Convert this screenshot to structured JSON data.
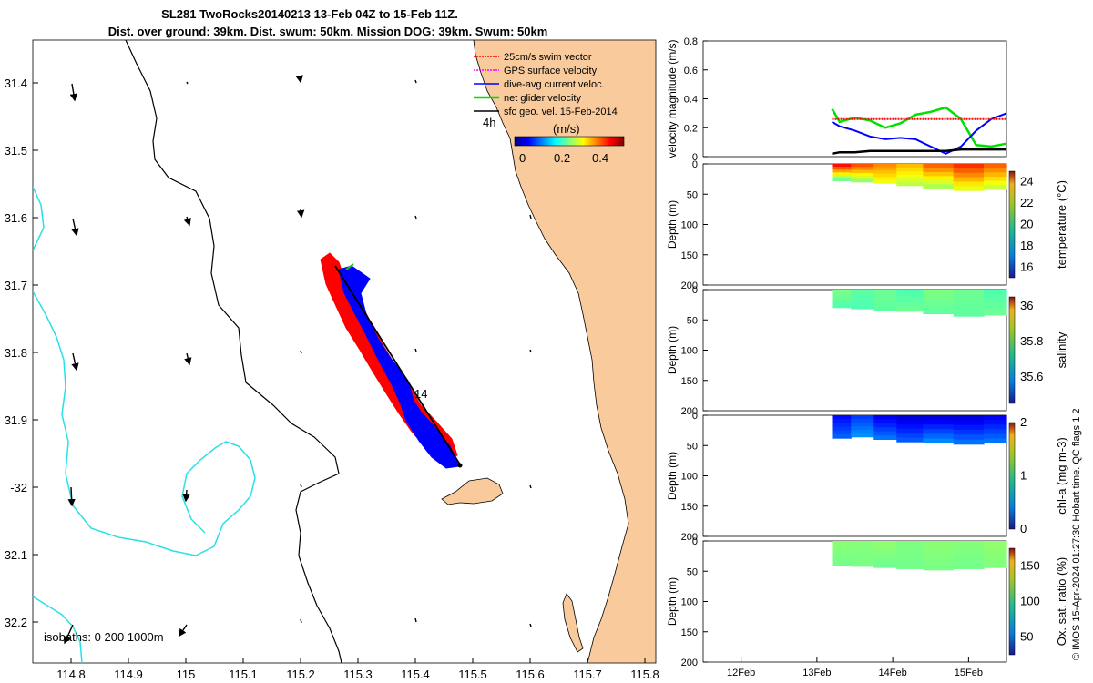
{
  "title": {
    "line1": "SL281 TwoRocks20140213 13-Feb 04Z to 15-Feb 11Z.",
    "line2": "Dist. over ground: 39km. Dist. swum: 50km. Mission DOG: 39km. Swum: 50km"
  },
  "map": {
    "lon_ticks": [
      "114.8",
      "114.9",
      "115",
      "115.1",
      "115.2",
      "115.3",
      "115.4",
      "115.5",
      "115.6",
      "115.7",
      "115.8"
    ],
    "lat_ticks": [
      "31.4",
      "31.5",
      "31.6",
      "31.7",
      "31.8",
      "31.9",
      "-32",
      "32.1",
      "32.2"
    ],
    "isobaths_label": "isobaths: 0   200  1000m",
    "track_day_label": "14",
    "legend": [
      {
        "label": "25cm/s swim vector",
        "color": "#ff0000"
      },
      {
        "label": "GPS surface velocity",
        "color": "#ff00ff"
      },
      {
        "label": "dive-avg current veloc.",
        "color": "#0000ff"
      },
      {
        "label": "net glider velocity",
        "color": "#00e000"
      },
      {
        "label": "sfc geo. vel. 15-Feb-2014",
        "color": "#000000"
      }
    ],
    "legend_scale_label": "4h",
    "colorbar": {
      "unit": "(m/s)",
      "ticks": [
        "0",
        "0.2",
        "0.4"
      ]
    }
  },
  "chart_data": [
    {
      "type": "line",
      "title": "",
      "ylabel": "velocity magnitude (m/s)",
      "xlabel": "",
      "ylim": [
        0,
        0.8
      ],
      "yticks": [
        "0",
        "0.2",
        "0.4",
        "0.6",
        "0.8"
      ],
      "x_ticks": [
        "12Feb",
        "13Feb",
        "14Feb",
        "15Feb"
      ],
      "x": [
        13.2,
        13.3,
        13.5,
        13.7,
        13.9,
        14.1,
        14.3,
        14.5,
        14.7,
        14.9,
        15.1,
        15.3,
        15.5
      ],
      "series": [
        {
          "name": "net glider velocity",
          "color": "#00e000",
          "values": [
            0.33,
            0.24,
            0.27,
            0.25,
            0.2,
            0.23,
            0.29,
            0.31,
            0.34,
            0.26,
            0.08,
            0.07,
            0.09
          ]
        },
        {
          "name": "dive-avg current veloc.",
          "color": "#0000ff",
          "values": [
            0.24,
            0.21,
            0.18,
            0.14,
            0.12,
            0.13,
            0.12,
            0.07,
            0.02,
            0.07,
            0.18,
            0.26,
            0.3
          ]
        },
        {
          "name": "25cm/s swim vector",
          "color": "#ff0000",
          "values": [
            0.26,
            0.26,
            0.26,
            0.26,
            0.26,
            0.26,
            0.26,
            0.26,
            0.26,
            0.26,
            0.26,
            0.26,
            0.26
          ]
        },
        {
          "name": "sfc geo. vel.",
          "color": "#000000",
          "values": [
            0.02,
            0.03,
            0.03,
            0.04,
            0.04,
            0.04,
            0.04,
            0.04,
            0.04,
            0.05,
            0.05,
            0.05,
            0.05
          ]
        }
      ]
    },
    {
      "type": "heatmap",
      "ylabel": "Depth (m)",
      "yticks": [
        "0",
        "50",
        "100",
        "150",
        "200"
      ],
      "ylim": [
        0,
        200
      ],
      "colorbar_label": "temperature (°C)",
      "colorbar_ticks": [
        "16",
        "18",
        "20",
        "22",
        "24"
      ],
      "crange": [
        15,
        25
      ],
      "columns": [
        {
          "x": 13.3,
          "depth_max": 28,
          "top": 24.0,
          "bottom": 19.5
        },
        {
          "x": 13.6,
          "depth_max": 30,
          "top": 23.2,
          "bottom": 20.0
        },
        {
          "x": 13.9,
          "depth_max": 32,
          "top": 22.5,
          "bottom": 21.0
        },
        {
          "x": 14.2,
          "depth_max": 36,
          "top": 22.0,
          "bottom": 20.5
        },
        {
          "x": 14.6,
          "depth_max": 40,
          "top": 23.0,
          "bottom": 20.2
        },
        {
          "x": 15.0,
          "depth_max": 44,
          "top": 23.5,
          "bottom": 20.8
        },
        {
          "x": 15.4,
          "depth_max": 42,
          "top": 23.0,
          "bottom": 20.5
        }
      ]
    },
    {
      "type": "heatmap",
      "ylabel": "Depth (m)",
      "yticks": [
        "0",
        "50",
        "100",
        "150",
        "200"
      ],
      "ylim": [
        0,
        200
      ],
      "colorbar_label": "salinity",
      "colorbar_ticks": [
        "35.6",
        "35.8",
        "36"
      ],
      "crange": [
        35.45,
        36.05
      ],
      "columns": [
        {
          "x": 13.3,
          "depth_max": 30,
          "top": 35.75,
          "bottom": 35.72
        },
        {
          "x": 13.6,
          "depth_max": 32,
          "top": 35.73,
          "bottom": 35.72
        },
        {
          "x": 13.9,
          "depth_max": 34,
          "top": 35.74,
          "bottom": 35.73
        },
        {
          "x": 14.2,
          "depth_max": 36,
          "top": 35.72,
          "bottom": 35.74
        },
        {
          "x": 14.6,
          "depth_max": 40,
          "top": 35.75,
          "bottom": 35.73
        },
        {
          "x": 15.0,
          "depth_max": 44,
          "top": 35.74,
          "bottom": 35.73
        },
        {
          "x": 15.4,
          "depth_max": 42,
          "top": 35.72,
          "bottom": 35.74
        }
      ]
    },
    {
      "type": "heatmap",
      "ylabel": "Depth (m)",
      "yticks": [
        "0",
        "50",
        "100",
        "150",
        "200"
      ],
      "ylim": [
        0,
        200
      ],
      "colorbar_label": "chl-a (mg m-3)",
      "colorbar_ticks": [
        "0",
        "1",
        "2"
      ],
      "crange": [
        0,
        2
      ],
      "columns": [
        {
          "x": 13.3,
          "depth_max": 38,
          "top": 0.25,
          "bottom": 0.45
        },
        {
          "x": 13.6,
          "depth_max": 36,
          "top": 0.35,
          "bottom": 0.55
        },
        {
          "x": 13.9,
          "depth_max": 40,
          "top": 0.2,
          "bottom": 0.5
        },
        {
          "x": 14.2,
          "depth_max": 44,
          "top": 0.15,
          "bottom": 0.45
        },
        {
          "x": 14.6,
          "depth_max": 46,
          "top": 0.15,
          "bottom": 0.55
        },
        {
          "x": 15.0,
          "depth_max": 48,
          "top": 0.15,
          "bottom": 0.5
        },
        {
          "x": 15.4,
          "depth_max": 46,
          "top": 0.2,
          "bottom": 0.5
        }
      ]
    },
    {
      "type": "heatmap",
      "ylabel": "Depth (m)",
      "yticks": [
        "0",
        "50",
        "100",
        "150",
        "200"
      ],
      "ylim": [
        0,
        200
      ],
      "colorbar_label": "Ox. sat. ratio (%)",
      "colorbar_ticks": [
        "50",
        "100",
        "150"
      ],
      "crange": [
        25,
        175
      ],
      "columns": [
        {
          "x": 13.3,
          "depth_max": 40,
          "top": 102,
          "bottom": 98
        },
        {
          "x": 13.6,
          "depth_max": 42,
          "top": 101,
          "bottom": 99
        },
        {
          "x": 13.9,
          "depth_max": 44,
          "top": 103,
          "bottom": 97
        },
        {
          "x": 14.2,
          "depth_max": 46,
          "top": 100,
          "bottom": 98
        },
        {
          "x": 14.6,
          "depth_max": 48,
          "top": 102,
          "bottom": 99
        },
        {
          "x": 15.0,
          "depth_max": 46,
          "top": 101,
          "bottom": 98
        },
        {
          "x": 15.4,
          "depth_max": 44,
          "top": 103,
          "bottom": 100
        }
      ]
    }
  ],
  "credit": "© IMOS 15-Apr-2024 01:27:30 Hobart time. QC flags 1  2"
}
